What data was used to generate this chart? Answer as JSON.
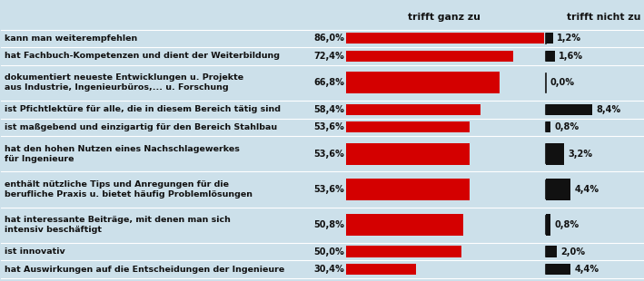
{
  "categories": [
    "kann man weiterempfehlen",
    "hat Fachbuch-Kompetenzen und dient der Weiterbildung",
    "dokumentiert neueste Entwicklungen u. Projekte\naus Industrie, Ingenieurbüros,... u. Forschung",
    "ist Pfichtlektüre für alle, die in diesem Bereich tätig sind",
    "ist maßgebend und einzigartig für den Bereich Stahlbau",
    "hat den hohen Nutzen eines Nachschlagewerkes\nfür Ingenieure",
    "enthält nützliche Tips und Anregungen für die\nberufliche Praxis u. bietet häufig Problemlösungen",
    "hat interessante Beiträge, mit denen man sich\nintensiv beschäftigt",
    "ist innovativ",
    "hat Auswirkungen auf die Entscheidungen der Ingenieure"
  ],
  "trifft_ganz_zu": [
    86.0,
    72.4,
    66.8,
    58.4,
    53.6,
    53.6,
    53.6,
    50.8,
    50.0,
    30.4
  ],
  "trifft_nicht_zu": [
    1.2,
    1.6,
    0.0,
    8.4,
    0.8,
    3.2,
    4.4,
    0.8,
    2.0,
    4.4
  ],
  "trifft_ganz_zu_labels": [
    "86,0%",
    "72,4%",
    "66,8%",
    "58,4%",
    "53,6%",
    "53,6%",
    "53,6%",
    "50,8%",
    "50,0%",
    "30,4%"
  ],
  "trifft_nicht_zu_labels": [
    "1,2%",
    "1,6%",
    "0,0%",
    "8,4%",
    "0,8%",
    "3,2%",
    "4,4%",
    "0,8%",
    "2,0%",
    "4,4%"
  ],
  "bar_color_red": "#d40000",
  "bar_color_black": "#111111",
  "background_color": "#cce0ea",
  "text_color_dark": "#111111",
  "header_trifft_ganz": "trifft ganz zu",
  "header_trifft_nicht": "trifft nicht zu",
  "label_fontsize": 6.8,
  "value_fontsize": 7.0,
  "header_fontsize": 7.8,
  "row_heights": [
    1,
    1,
    2,
    1,
    1,
    2,
    2,
    2,
    1,
    1
  ],
  "total_row_units": 14
}
